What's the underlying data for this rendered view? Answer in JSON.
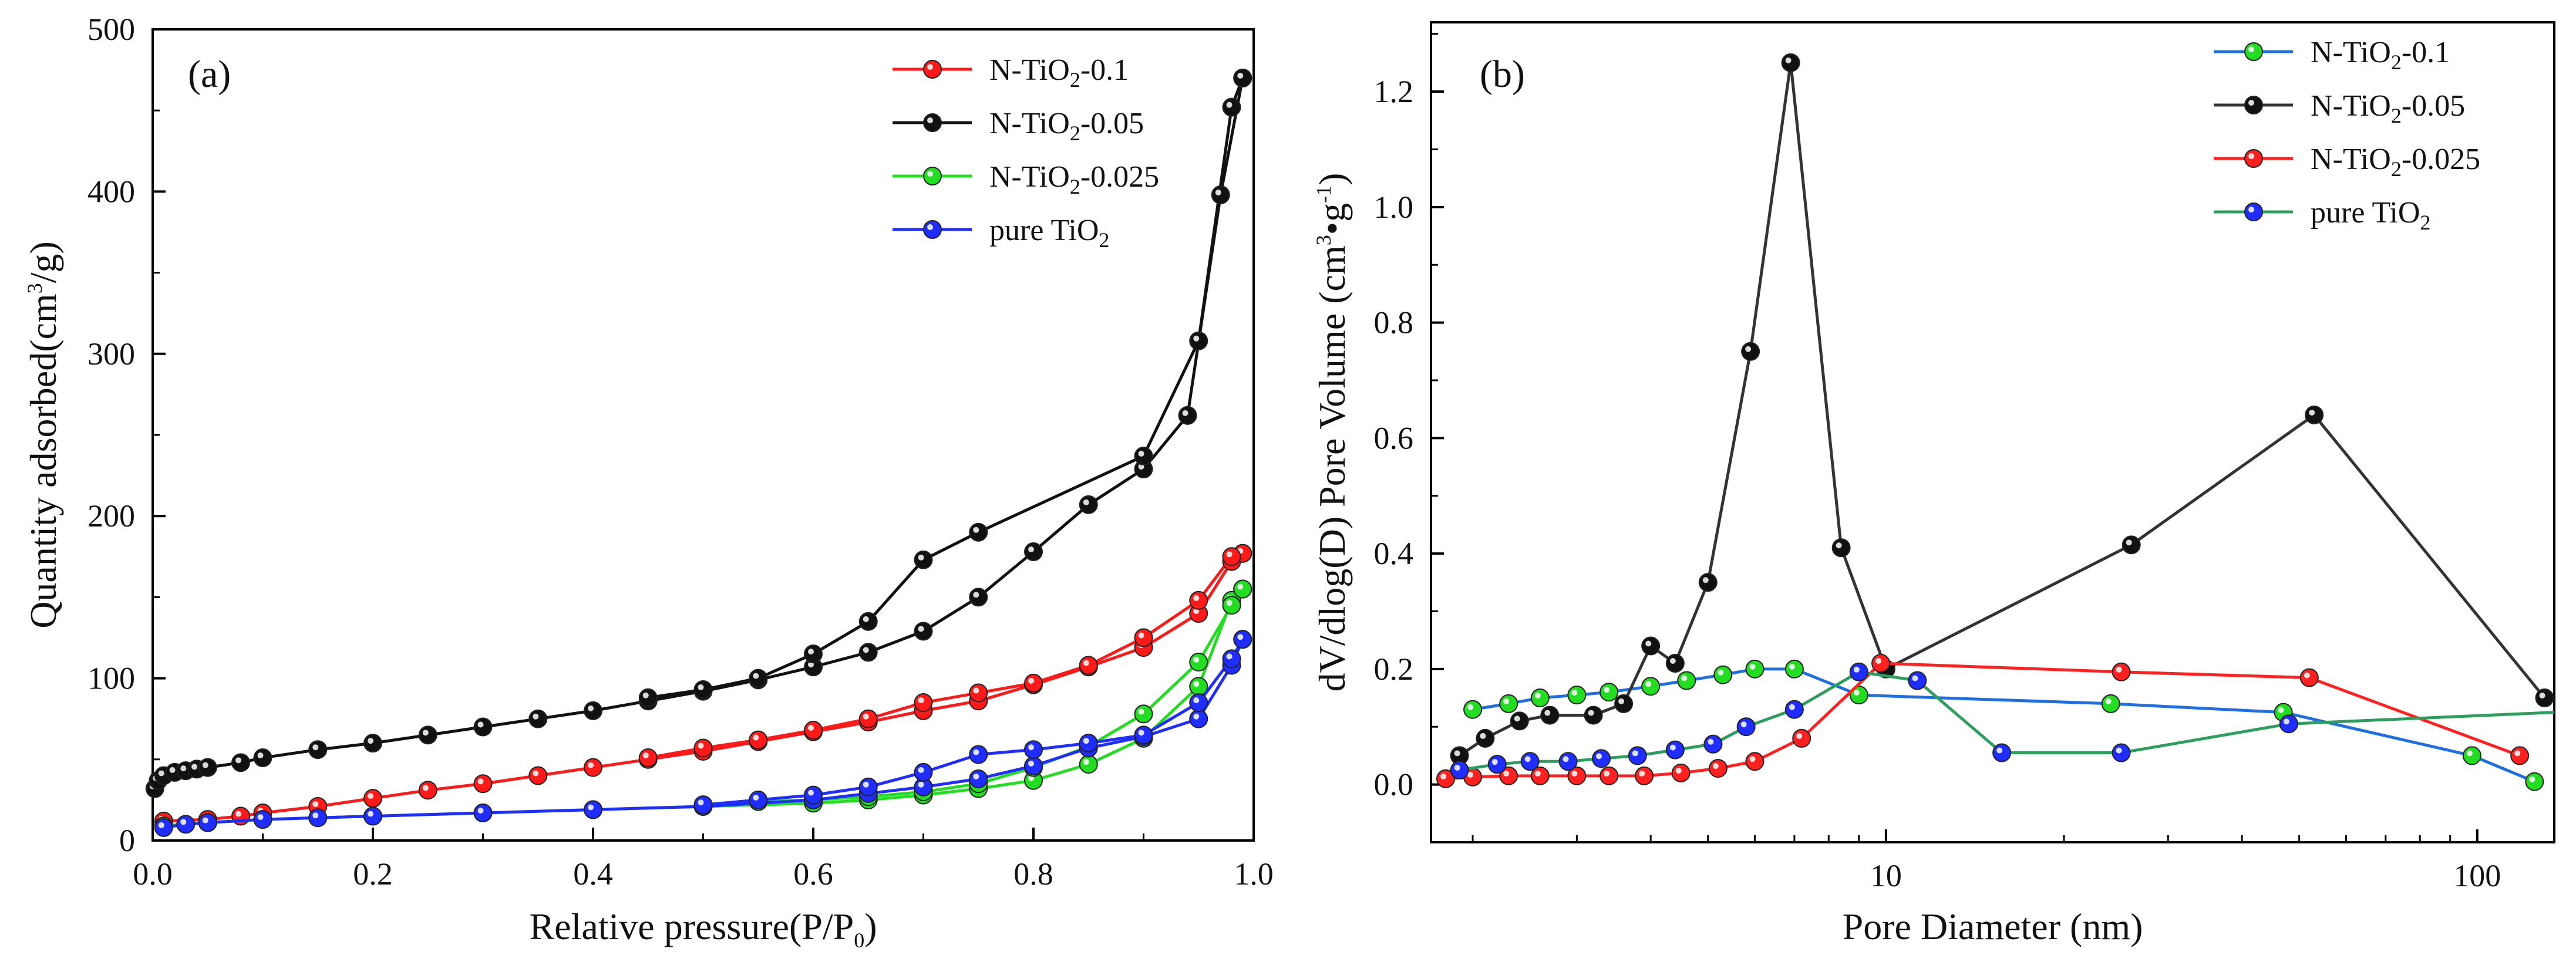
{
  "chart_data": [
    {
      "type": "line",
      "panel_label": "(a)",
      "xlabel": "Relative pressure(P/P",
      "xlabel_sub": "0",
      "xlabel_tail": ")",
      "ylabel": "Quantity adsorbed(cm",
      "ylabel_sup": "3",
      "ylabel_tail": "/g)",
      "xlim": [
        0,
        1.0
      ],
      "ylim": [
        0,
        500
      ],
      "xticks": [
        "0.0",
        "0.2",
        "0.4",
        "0.6",
        "0.8",
        "1.0"
      ],
      "yticks": [
        "0",
        "100",
        "200",
        "300",
        "400",
        "500"
      ],
      "legend_position": "top-right",
      "series": [
        {
          "name": "N-TiO",
          "sub": "2",
          "tail": "-0.1",
          "color": "#ff1a1a",
          "adsorption": [
            [
              0.01,
              12
            ],
            [
              0.05,
              13
            ],
            [
              0.08,
              15
            ],
            [
              0.1,
              17
            ],
            [
              0.15,
              21
            ],
            [
              0.2,
              26
            ],
            [
              0.25,
              31
            ],
            [
              0.3,
              35
            ],
            [
              0.35,
              40
            ],
            [
              0.4,
              45
            ],
            [
              0.45,
              50
            ],
            [
              0.5,
              55
            ],
            [
              0.55,
              61
            ],
            [
              0.6,
              67
            ],
            [
              0.65,
              73
            ],
            [
              0.7,
              80
            ],
            [
              0.75,
              86
            ],
            [
              0.8,
              96
            ],
            [
              0.85,
              107
            ],
            [
              0.9,
              119
            ],
            [
              0.95,
              140
            ],
            [
              0.98,
              172
            ],
            [
              0.99,
              177
            ]
          ],
          "desorption": [
            [
              0.99,
              177
            ],
            [
              0.98,
              175
            ],
            [
              0.95,
              148
            ],
            [
              0.9,
              125
            ],
            [
              0.85,
              108
            ],
            [
              0.8,
              97
            ],
            [
              0.75,
              91
            ],
            [
              0.7,
              85
            ],
            [
              0.65,
              75
            ],
            [
              0.6,
              68
            ],
            [
              0.55,
              62
            ],
            [
              0.5,
              57
            ],
            [
              0.45,
              51
            ]
          ]
        },
        {
          "name": "N-TiO",
          "sub": "2",
          "tail": "-0.05",
          "color": "#111111",
          "adsorption": [
            [
              0.002,
              32
            ],
            [
              0.005,
              37
            ],
            [
              0.01,
              40
            ],
            [
              0.02,
              42
            ],
            [
              0.03,
              43
            ],
            [
              0.04,
              44
            ],
            [
              0.05,
              45
            ],
            [
              0.08,
              48
            ],
            [
              0.1,
              51
            ],
            [
              0.15,
              56
            ],
            [
              0.2,
              60
            ],
            [
              0.25,
              65
            ],
            [
              0.3,
              70
            ],
            [
              0.35,
              75
            ],
            [
              0.4,
              80
            ],
            [
              0.45,
              86
            ],
            [
              0.5,
              92
            ],
            [
              0.55,
              99
            ],
            [
              0.6,
              107
            ],
            [
              0.65,
              116
            ],
            [
              0.7,
              129
            ],
            [
              0.75,
              150
            ],
            [
              0.8,
              178
            ],
            [
              0.85,
              207
            ],
            [
              0.9,
              229
            ],
            [
              0.94,
              262
            ],
            [
              0.97,
              398
            ],
            [
              0.99,
              470
            ]
          ],
          "desorption": [
            [
              0.99,
              470
            ],
            [
              0.98,
              452
            ],
            [
              0.95,
              308
            ],
            [
              0.9,
              237
            ],
            [
              0.75,
              190
            ],
            [
              0.7,
              173
            ],
            [
              0.65,
              135
            ],
            [
              0.6,
              115
            ],
            [
              0.55,
              100
            ],
            [
              0.5,
              93
            ],
            [
              0.45,
              88
            ]
          ]
        },
        {
          "name": "N-TiO",
          "sub": "2",
          "tail": "-0.025",
          "color": "#22dd22",
          "adsorption": [
            [
              0.01,
              9
            ],
            [
              0.05,
              11
            ],
            [
              0.1,
              13
            ],
            [
              0.2,
              15
            ],
            [
              0.3,
              17
            ],
            [
              0.4,
              19
            ],
            [
              0.5,
              21
            ],
            [
              0.6,
              23
            ],
            [
              0.65,
              25
            ],
            [
              0.7,
              28
            ],
            [
              0.75,
              32
            ],
            [
              0.8,
              37
            ],
            [
              0.85,
              47
            ],
            [
              0.9,
              63
            ],
            [
              0.95,
              95
            ],
            [
              0.98,
              148
            ],
            [
              0.99,
              155
            ]
          ],
          "desorption": [
            [
              0.99,
              155
            ],
            [
              0.98,
              145
            ],
            [
              0.95,
              110
            ],
            [
              0.9,
              78
            ],
            [
              0.85,
              58
            ],
            [
              0.8,
              45
            ],
            [
              0.75,
              35
            ],
            [
              0.7,
              30
            ],
            [
              0.65,
              27
            ],
            [
              0.6,
              25
            ],
            [
              0.55,
              24
            ],
            [
              0.5,
              22
            ]
          ]
        },
        {
          "name": "pure TiO",
          "sub": "2",
          "tail": "",
          "color": "#1f2dff",
          "adsorption": [
            [
              0.01,
              8
            ],
            [
              0.03,
              10
            ],
            [
              0.05,
              11
            ],
            [
              0.1,
              13
            ],
            [
              0.15,
              14
            ],
            [
              0.2,
              15
            ],
            [
              0.3,
              17
            ],
            [
              0.4,
              19
            ],
            [
              0.5,
              21
            ],
            [
              0.6,
              25
            ],
            [
              0.65,
              29
            ],
            [
              0.7,
              33
            ],
            [
              0.75,
              38
            ],
            [
              0.8,
              46
            ],
            [
              0.85,
              57
            ],
            [
              0.9,
              64
            ],
            [
              0.95,
              75
            ],
            [
              0.98,
              108
            ],
            [
              0.99,
              124
            ]
          ],
          "desorption": [
            [
              0.99,
              124
            ],
            [
              0.98,
              112
            ],
            [
              0.95,
              85
            ],
            [
              0.9,
              65
            ],
            [
              0.85,
              60
            ],
            [
              0.8,
              56
            ],
            [
              0.75,
              53
            ],
            [
              0.7,
              42
            ],
            [
              0.65,
              33
            ],
            [
              0.6,
              28
            ],
            [
              0.55,
              25
            ],
            [
              0.5,
              22
            ]
          ]
        }
      ]
    },
    {
      "type": "line",
      "x_scale": "log",
      "panel_label": "(b)",
      "xlabel": "Pore Diameter (nm)",
      "ylabel": "dV/dlog(D) Pore Volume (cm",
      "ylabel_sup": "3",
      "ylabel_tail_a": "•g",
      "ylabel_sup2": "-1",
      "ylabel_tail_b": ")",
      "xlim": [
        1.7,
        135
      ],
      "ylim": [
        -0.1,
        1.32
      ],
      "xticks": [
        {
          "value": 10,
          "label": "10"
        },
        {
          "value": 100,
          "label": "100"
        }
      ],
      "yticks": [
        "0.0",
        "0.2",
        "0.4",
        "0.6",
        "0.8",
        "1.0",
        "1.2"
      ],
      "legend_position": "top-right",
      "series": [
        {
          "name": "N-TiO",
          "sub": "2",
          "tail": "-0.1",
          "line_color": "#1f6fe0",
          "marker_color": "#22dd22",
          "points": [
            [
              2.0,
              0.13
            ],
            [
              2.3,
              0.14
            ],
            [
              2.6,
              0.15
            ],
            [
              3.0,
              0.155
            ],
            [
              3.4,
              0.16
            ],
            [
              4.0,
              0.17
            ],
            [
              4.6,
              0.18
            ],
            [
              5.3,
              0.19
            ],
            [
              6.0,
              0.2
            ],
            [
              7.0,
              0.2
            ],
            [
              9.0,
              0.155
            ],
            [
              24.0,
              0.14
            ],
            [
              47.0,
              0.125
            ],
            [
              98.0,
              0.05
            ],
            [
              125.0,
              0.005
            ]
          ]
        },
        {
          "name": "N-TiO",
          "sub": "2",
          "tail": "-0.05",
          "line_color": "#333333",
          "marker_color": "#111111",
          "points": [
            [
              1.9,
              0.05
            ],
            [
              2.1,
              0.08
            ],
            [
              2.4,
              0.11
            ],
            [
              2.7,
              0.12
            ],
            [
              3.2,
              0.12
            ],
            [
              3.6,
              0.14
            ],
            [
              4.0,
              0.24
            ],
            [
              4.4,
              0.21
            ],
            [
              5.0,
              0.35
            ],
            [
              5.9,
              0.75
            ],
            [
              6.9,
              1.25
            ],
            [
              8.4,
              0.41
            ],
            [
              10.0,
              0.2
            ],
            [
              26.0,
              0.415
            ],
            [
              53.0,
              0.64
            ],
            [
              130.0,
              0.15
            ]
          ]
        },
        {
          "name": "N-TiO",
          "sub": "2",
          "tail": "-0.025",
          "line_color": "#ff2020",
          "marker_color": "#ff2020",
          "points": [
            [
              1.8,
              0.01
            ],
            [
              2.0,
              0.013
            ],
            [
              2.3,
              0.015
            ],
            [
              2.6,
              0.015
            ],
            [
              3.0,
              0.015
            ],
            [
              3.4,
              0.015
            ],
            [
              3.9,
              0.015
            ],
            [
              4.5,
              0.02
            ],
            [
              5.2,
              0.028
            ],
            [
              6.0,
              0.04
            ],
            [
              7.2,
              0.08
            ],
            [
              9.8,
              0.21
            ],
            [
              25.0,
              0.195
            ],
            [
              52.0,
              0.185
            ],
            [
              118.0,
              0.05
            ]
          ]
        },
        {
          "name": "pure TiO",
          "sub": "2",
          "tail": "",
          "line_color": "#2e9e5e",
          "marker_color": "#1f2dff",
          "points": [
            [
              1.9,
              0.025
            ],
            [
              2.2,
              0.035
            ],
            [
              2.5,
              0.04
            ],
            [
              2.9,
              0.04
            ],
            [
              3.3,
              0.045
            ],
            [
              3.8,
              0.05
            ],
            [
              4.4,
              0.06
            ],
            [
              5.1,
              0.07
            ],
            [
              5.8,
              0.1
            ],
            [
              7.0,
              0.13
            ],
            [
              9.0,
              0.195
            ],
            [
              11.3,
              0.18
            ],
            [
              15.7,
              0.055
            ],
            [
              25.0,
              0.055
            ],
            [
              48.0,
              0.105
            ],
            [
              135.0,
              0.125
            ]
          ]
        }
      ]
    }
  ]
}
